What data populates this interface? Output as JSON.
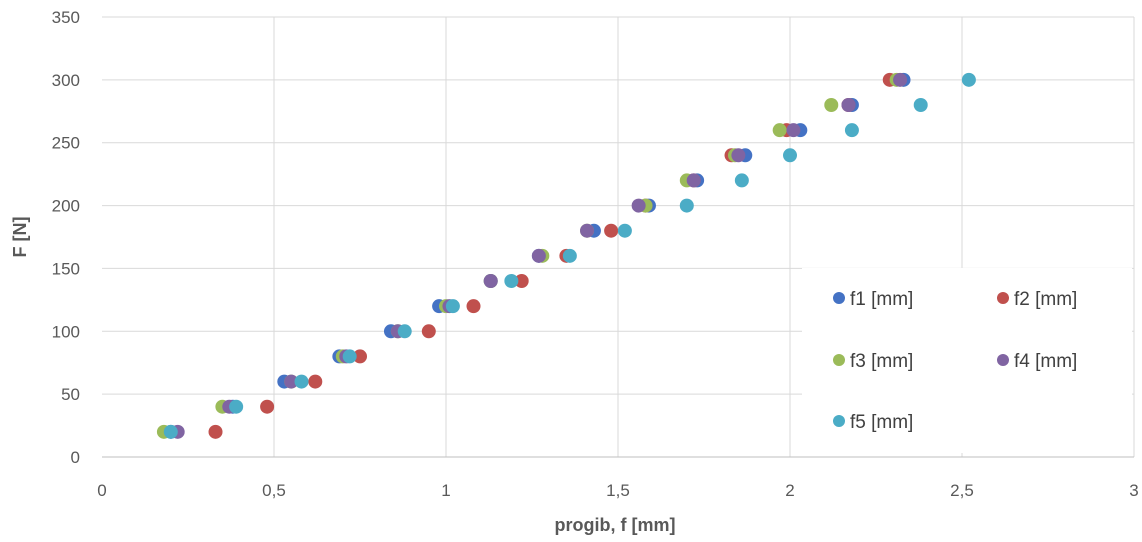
{
  "chart_data": {
    "type": "scatter",
    "xlabel": "progib, f [mm]",
    "ylabel": "F [N]",
    "xlim": [
      0,
      3
    ],
    "ylim": [
      0,
      350
    ],
    "x_ticks": [
      "0",
      "0,5",
      "1",
      "1,5",
      "2",
      "2,5",
      "3"
    ],
    "y_ticks": [
      "0",
      "50",
      "100",
      "150",
      "200",
      "250",
      "300",
      "350"
    ],
    "grid": true,
    "legend_position": "bottom-right",
    "y": [
      20,
      40,
      60,
      80,
      100,
      120,
      140,
      160,
      180,
      200,
      220,
      240,
      260,
      280,
      300
    ],
    "series": [
      {
        "name": "f1 [mm]",
        "color": "#4472C4",
        "x": [
          0.2,
          0.38,
          0.53,
          0.69,
          0.84,
          0.98,
          1.13,
          1.27,
          1.43,
          1.59,
          1.73,
          1.87,
          2.03,
          2.18,
          2.33
        ]
      },
      {
        "name": "f2 [mm]",
        "color": "#C0504D",
        "x": [
          0.33,
          0.48,
          0.62,
          0.75,
          0.95,
          1.08,
          1.22,
          1.35,
          1.48,
          1.58,
          1.72,
          1.83,
          1.99,
          2.17,
          2.29
        ]
      },
      {
        "name": "f3 [mm]",
        "color": "#9BBB59",
        "x": [
          0.18,
          0.35,
          0.55,
          0.7,
          0.86,
          1.0,
          1.13,
          1.28,
          1.41,
          1.58,
          1.7,
          1.84,
          1.97,
          2.12,
          2.31
        ]
      },
      {
        "name": "f4 [mm]",
        "color": "#8064A2",
        "x": [
          0.22,
          0.37,
          0.55,
          0.71,
          0.86,
          1.01,
          1.13,
          1.27,
          1.41,
          1.56,
          1.72,
          1.85,
          2.01,
          2.17,
          2.32
        ]
      },
      {
        "name": "f5 [mm]",
        "color": "#4BACC6",
        "x": [
          0.2,
          0.39,
          0.58,
          0.72,
          0.88,
          1.02,
          1.19,
          1.36,
          1.52,
          1.7,
          1.86,
          2.0,
          2.18,
          2.38,
          2.52
        ]
      }
    ]
  }
}
